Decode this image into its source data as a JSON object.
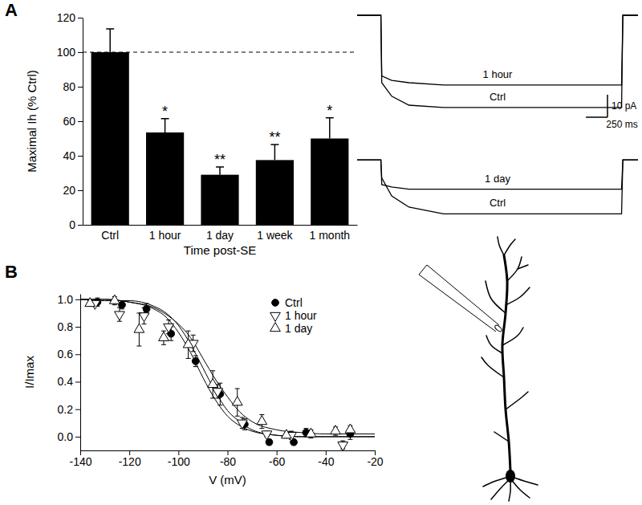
{
  "chart_data": [
    {
      "type": "bar",
      "label": "A",
      "x_label": "Time post-SE",
      "y_label": "Maximal Ih (% Ctrl)",
      "categories": [
        "Ctrl",
        "1 hour",
        "1 day",
        "1 week",
        "1 month"
      ],
      "values": [
        100,
        53.5,
        29,
        37.5,
        50
      ],
      "errors": [
        13.5,
        8,
        4.5,
        9,
        12
      ],
      "annotations": [
        null,
        "*",
        "**",
        "**",
        "*"
      ],
      "reference_line": {
        "value": 100,
        "line_style": "dashed"
      },
      "color": "#000000",
      "ylim": [
        0,
        120
      ],
      "yticks": [
        0,
        20,
        40,
        60,
        80,
        100,
        120
      ]
    },
    {
      "type": "line",
      "tick_labels": false,
      "x": [
        0,
        275,
        285,
        400,
        600,
        1000,
        3060,
        3075,
        3250
      ],
      "xlim": [
        0,
        3250
      ],
      "ylim": [
        -45,
        5
      ],
      "series": [
        {
          "name": "1 hour",
          "color": "#000000",
          "values": [
            0,
            0,
            -27,
            -29,
            -30,
            -31,
            -31,
            0,
            0
          ]
        },
        {
          "name": "Ctrl",
          "color": "#000000",
          "values": [
            0,
            0,
            -30,
            -36,
            -40,
            -41,
            -41,
            0,
            0
          ]
        }
      ],
      "scale_bar": {
        "x": 250,
        "x_label": "250 ms",
        "y": 10,
        "y_label": "10 pA"
      }
    },
    {
      "type": "line",
      "tick_labels": false,
      "x": [
        0,
        275,
        285,
        400,
        600,
        1000,
        3060,
        3075,
        3250
      ],
      "xlim": [
        0,
        3250
      ],
      "ylim": [
        -28,
        4
      ],
      "series": [
        {
          "name": "1 day",
          "color": "#000000",
          "values": [
            0,
            0,
            -11,
            -12,
            -13,
            -13,
            -13,
            0,
            0
          ]
        },
        {
          "name": "Ctrl",
          "color": "#000000",
          "values": [
            0,
            0,
            -8,
            -16,
            -21,
            -24,
            -24,
            0,
            0
          ]
        }
      ]
    },
    {
      "type": "scatter",
      "label": "B",
      "x_label": "V (mV)",
      "y_label": "I/Imax",
      "xlim": [
        -140,
        -20
      ],
      "xticks": [
        -140,
        -120,
        -100,
        -80,
        -60,
        -40,
        -20
      ],
      "ylim": [
        -0.1,
        1.04
      ],
      "yticks": [
        {
          "value": 0,
          "label": "0.0"
        },
        {
          "value": 0.2,
          "label": "0.2"
        },
        {
          "value": 0.4,
          "label": "0.4"
        },
        {
          "value": 0.6,
          "label": "0.6"
        },
        {
          "value": 0.8,
          "label": "0.8"
        },
        {
          "value": 1,
          "label": "1.0"
        }
      ],
      "legend": "upper right",
      "series": [
        {
          "name": "Ctrl",
          "color": "#000000",
          "marker": "circle",
          "x": [
            -133,
            -123,
            -113,
            -103,
            -93,
            -83,
            -73,
            -63,
            -53,
            -48,
            -30
          ],
          "values": [
            0.98,
            0.96,
            0.93,
            0.75,
            0.55,
            0.31,
            0.09,
            -0.04,
            -0.04,
            0.03,
            0.02
          ],
          "errors": [
            0.03,
            0.03,
            0.04,
            0.05,
            0.04,
            0.08,
            0.04,
            0.02,
            0.02,
            0.03,
            0.04
          ]
        },
        {
          "name": "1 hour",
          "color": "#000000",
          "marker": "triangle-down-open",
          "x": [
            -134,
            -124,
            -114,
            -104,
            -94,
            -84,
            -74,
            -64,
            -54,
            -33
          ],
          "values": [
            0.97,
            0.89,
            0.88,
            0.8,
            0.68,
            0.33,
            0.1,
            0.02,
            0.01,
            -0.06
          ],
          "errors": [
            0.02,
            0.05,
            0.06,
            0.05,
            0.06,
            0.05,
            0.04,
            0.02,
            0.03,
            0.03
          ]
        },
        {
          "name": "1 day",
          "color": "#000000",
          "marker": "triangle-up-open",
          "x": [
            -136,
            -126,
            -116,
            -106,
            -96,
            -86,
            -76,
            -66,
            -56,
            -46,
            -36,
            -30
          ],
          "values": [
            0.97,
            0.99,
            0.78,
            0.72,
            0.67,
            0.38,
            0.25,
            0.11,
            0.01,
            0.02,
            0.04,
            0.05
          ],
          "errors": [
            0.02,
            0.03,
            0.12,
            0.05,
            0.1,
            0.1,
            0.1,
            0.05,
            0.02,
            0.03,
            0.03,
            0.03
          ]
        },
        {
          "type": "line",
          "color": "#000000",
          "x": [
            -140,
            -130,
            -120,
            -110,
            -105,
            -100,
            -95,
            -90,
            -85,
            -80,
            -75,
            -70,
            -60,
            -50,
            -40,
            -30,
            -20
          ],
          "values": [
            1.0,
            1.0,
            0.98,
            0.93,
            0.87,
            0.76,
            0.61,
            0.43,
            0.27,
            0.15,
            0.08,
            0.04,
            0.01,
            0.0,
            0.0,
            0.0,
            0.0
          ]
        },
        {
          "type": "line",
          "color": "#000000",
          "x": [
            -140,
            -130,
            -120,
            -110,
            -105,
            -100,
            -95,
            -90,
            -85,
            -80,
            -75,
            -70,
            -60,
            -50,
            -40,
            -30,
            -20
          ],
          "values": [
            1.0,
            0.99,
            0.99,
            0.95,
            0.9,
            0.81,
            0.67,
            0.5,
            0.33,
            0.19,
            0.11,
            0.05,
            0.01,
            0.0,
            0.0,
            0.0,
            0.0
          ]
        },
        {
          "type": "line",
          "color": "#000000",
          "x": [
            -140,
            -130,
            -120,
            -110,
            -105,
            -100,
            -95,
            -90,
            -85,
            -80,
            -75,
            -70,
            -60,
            -50,
            -40,
            -30,
            -20
          ],
          "values": [
            1.0,
            1.0,
            0.98,
            0.94,
            0.89,
            0.82,
            0.72,
            0.57,
            0.42,
            0.29,
            0.18,
            0.11,
            0.05,
            0.03,
            0.02,
            0.02,
            0.02
          ]
        }
      ]
    }
  ]
}
